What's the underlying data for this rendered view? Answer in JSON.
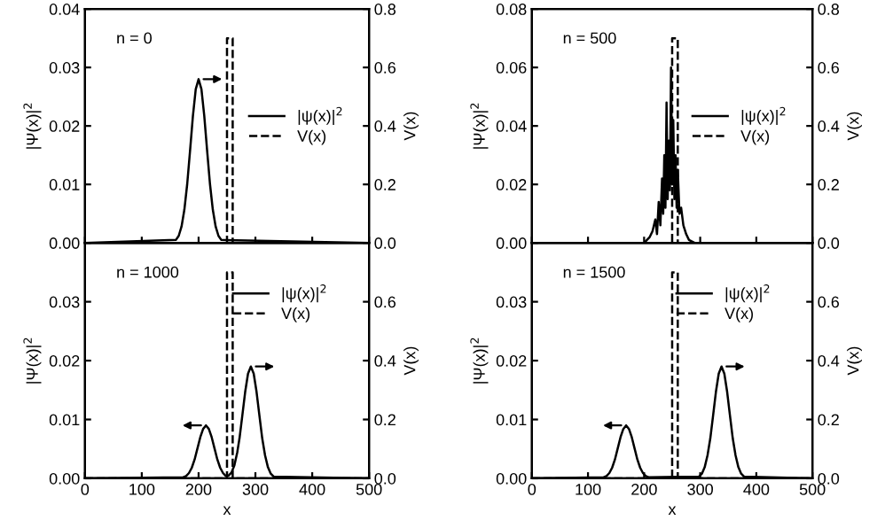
{
  "chart_data": [
    {
      "type": "line",
      "ylabel": "|Ψ(x)|$^{2}$",
      "y2label": "V(x)",
      "annotations": [
        "n = 0"
      ],
      "legend": "center right",
      "tick_labels": "y",
      "xlim": [
        0,
        500
      ],
      "xticks": [
        {
          "value": 0,
          "label": null
        },
        {
          "value": 100,
          "label": null
        },
        {
          "value": 200,
          "label": null
        },
        {
          "value": 300,
          "label": null
        },
        {
          "value": 400,
          "label": null
        },
        {
          "value": 500,
          "label": null
        }
      ],
      "ylim": [
        0,
        0.04
      ],
      "yticks": [
        {
          "value": 0,
          "label": "0.00"
        },
        {
          "value": 0.01,
          "label": "0.01"
        },
        {
          "value": 0.02,
          "label": "0.02"
        },
        {
          "value": 0.03,
          "label": "0.03"
        },
        {
          "value": 0.04,
          "label": "0.04"
        }
      ],
      "y2lim": [
        0,
        0.8
      ],
      "y2ticks": [
        {
          "value": 0,
          "label": "0.0"
        },
        {
          "value": 0.2,
          "label": "0.2"
        },
        {
          "value": 0.4,
          "label": "0.4"
        },
        {
          "value": 0.6,
          "label": "0.6"
        },
        {
          "value": 0.8,
          "label": "0.8"
        }
      ],
      "series": [
        {
          "name": "|ψ(x)|$^{2}$",
          "color": "#000000",
          "line_style": "solid",
          "x": [
            0,
            160,
            165,
            170,
            175,
            180,
            185,
            190,
            195,
            200,
            205,
            210,
            215,
            220,
            225,
            230,
            235,
            240,
            500
          ],
          "values": [
            0,
            0.0005,
            0.0012,
            0.0028,
            0.0057,
            0.0101,
            0.0158,
            0.0217,
            0.0263,
            0.028,
            0.0263,
            0.0217,
            0.0158,
            0.0101,
            0.0057,
            0.0028,
            0.0012,
            0.0005,
            0
          ]
        },
        {
          "name": "V(x)",
          "color": "#000000",
          "line_style": "dashed",
          "axis": "y2",
          "x": [
            0,
            250,
            250,
            260,
            260,
            500
          ],
          "values": [
            0,
            0,
            0.7,
            0.7,
            0,
            0
          ]
        }
      ]
    },
    {
      "type": "line",
      "ylabel": "|Ψ(x)|$^{2}$",
      "y2label": "V(x)",
      "annotations": [
        "n = 500"
      ],
      "legend": "center right",
      "tick_labels": "y",
      "xlim": [
        0,
        500
      ],
      "xticks": [
        {
          "value": 0,
          "label": null
        },
        {
          "value": 100,
          "label": null
        },
        {
          "value": 200,
          "label": null
        },
        {
          "value": 300,
          "label": null
        },
        {
          "value": 400,
          "label": null
        },
        {
          "value": 500,
          "label": null
        }
      ],
      "ylim": [
        0,
        0.08
      ],
      "yticks": [
        {
          "value": 0,
          "label": "0.00"
        },
        {
          "value": 0.02,
          "label": "0.02"
        },
        {
          "value": 0.04,
          "label": "0.04"
        },
        {
          "value": 0.06,
          "label": "0.06"
        },
        {
          "value": 0.08,
          "label": "0.08"
        }
      ],
      "y2lim": [
        0,
        0.8
      ],
      "y2ticks": [
        {
          "value": 0,
          "label": "0.0"
        },
        {
          "value": 0.2,
          "label": "0.2"
        },
        {
          "value": 0.4,
          "label": "0.4"
        },
        {
          "value": 0.6,
          "label": "0.6"
        },
        {
          "value": 0.8,
          "label": "0.8"
        }
      ],
      "series": [
        {
          "name": "|ψ(x)|$^{2}$",
          "color": "#000000",
          "line_style": "solid",
          "x": [
            0,
            200,
            210,
            215,
            220,
            223,
            226,
            229,
            232,
            234,
            236,
            238,
            240,
            242,
            244,
            246,
            248,
            250,
            252,
            254,
            256,
            258,
            260,
            263,
            266,
            270,
            275,
            280,
            290,
            500
          ],
          "values": [
            0,
            0,
            0.002,
            0.004,
            0.008,
            0.003,
            0.014,
            0.006,
            0.022,
            0.01,
            0.03,
            0.012,
            0.048,
            0.015,
            0.035,
            0.018,
            0.06,
            0.02,
            0.042,
            0.015,
            0.03,
            0.012,
            0.025,
            0.01,
            0.012,
            0.006,
            0.003,
            0.001,
            0,
            0
          ]
        },
        {
          "name": "V(x)",
          "color": "#000000",
          "line_style": "dashed",
          "axis": "y2",
          "x": [
            0,
            250,
            250,
            260,
            260,
            500
          ],
          "values": [
            0,
            0,
            0.7,
            0.7,
            0,
            0
          ]
        }
      ]
    },
    {
      "type": "line",
      "xlabel": "x",
      "ylabel": "|Ψ(x)|$^{2}$",
      "y2label": "V(x)",
      "annotations": [
        "n = 1000"
      ],
      "legend": "upper right",
      "xlim": [
        0,
        500
      ],
      "xticks": [
        0,
        100,
        200,
        300,
        400,
        500
      ],
      "ylim": [
        0,
        0.04
      ],
      "yticks": [
        {
          "value": 0,
          "label": "0.00"
        },
        {
          "value": 0.01,
          "label": "0.01"
        },
        {
          "value": 0.02,
          "label": "0.02"
        },
        {
          "value": 0.03,
          "label": "0.03"
        }
      ],
      "y2lim": [
        0,
        0.8
      ],
      "y2ticks": [
        {
          "value": 0,
          "label": "0.0"
        },
        {
          "value": 0.2,
          "label": "0.2"
        },
        {
          "value": 0.4,
          "label": "0.4"
        },
        {
          "value": 0.6,
          "label": "0.6"
        }
      ],
      "series": [
        {
          "name": "|ψ(x)|$^{2}$",
          "color": "#000000",
          "line_style": "solid",
          "x": [
            0,
            173,
            178,
            183,
            188,
            193,
            198,
            203,
            208,
            213,
            218,
            223,
            228,
            233,
            238,
            243,
            248,
            253,
            258,
            263,
            268,
            272,
            277,
            282,
            287,
            292,
            297,
            302,
            307,
            312,
            317,
            322,
            327,
            332,
            500
          ],
          "values": [
            0,
            0.0002,
            0.0004,
            0.0009,
            0.0018,
            0.0032,
            0.0051,
            0.007,
            0.0084,
            0.009,
            0.0084,
            0.007,
            0.0051,
            0.0032,
            0.0018,
            0.0009,
            0.0004,
            0.0005,
            0.001,
            0.0022,
            0.0044,
            0.0068,
            0.0107,
            0.0147,
            0.0178,
            0.019,
            0.0178,
            0.0147,
            0.0107,
            0.0068,
            0.0039,
            0.0019,
            0.0008,
            0.0003,
            0
          ]
        },
        {
          "name": "V(x)",
          "color": "#000000",
          "line_style": "dashed",
          "axis": "y2",
          "x": [
            0,
            250,
            250,
            260,
            260,
            500
          ],
          "values": [
            0,
            0,
            0.7,
            0.7,
            0,
            0
          ]
        }
      ]
    },
    {
      "type": "line",
      "xlabel": "x",
      "ylabel": "|Ψ(x)|$^{2}$",
      "y2label": "V(x)",
      "annotations": [
        "n = 1500"
      ],
      "legend": "upper right",
      "xlim": [
        0,
        500
      ],
      "xticks": [
        0,
        100,
        200,
        300,
        400,
        500
      ],
      "ylim": [
        0,
        0.04
      ],
      "yticks": [
        {
          "value": 0,
          "label": "0.00"
        },
        {
          "value": 0.01,
          "label": "0.01"
        },
        {
          "value": 0.02,
          "label": "0.02"
        },
        {
          "value": 0.03,
          "label": "0.03"
        }
      ],
      "y2lim": [
        0,
        0.8
      ],
      "y2ticks": [
        {
          "value": 0,
          "label": "0.0"
        },
        {
          "value": 0.2,
          "label": "0.2"
        },
        {
          "value": 0.4,
          "label": "0.4"
        },
        {
          "value": 0.6,
          "label": "0.6"
        }
      ],
      "series": [
        {
          "name": "|ψ(x)|$^{2}$",
          "color": "#000000",
          "line_style": "solid",
          "x": [
            0,
            128,
            133,
            138,
            143,
            148,
            153,
            158,
            163,
            168,
            173,
            178,
            183,
            188,
            193,
            198,
            203,
            208,
            298,
            303,
            308,
            313,
            318,
            323,
            328,
            333,
            338,
            343,
            348,
            353,
            358,
            363,
            368,
            373,
            378,
            500
          ],
          "values": [
            0,
            0.0002,
            0.0004,
            0.0009,
            0.0018,
            0.0032,
            0.0051,
            0.007,
            0.0084,
            0.009,
            0.0084,
            0.007,
            0.0051,
            0.0032,
            0.0018,
            0.0009,
            0.0004,
            0.0002,
            0.0003,
            0.0008,
            0.0019,
            0.0039,
            0.0068,
            0.0107,
            0.0147,
            0.0178,
            0.019,
            0.0178,
            0.0147,
            0.0107,
            0.0068,
            0.0039,
            0.0019,
            0.0008,
            0.0003,
            0
          ]
        },
        {
          "name": "V(x)",
          "color": "#000000",
          "line_style": "dashed",
          "axis": "y2",
          "x": [
            0,
            250,
            250,
            260,
            260,
            500
          ],
          "values": [
            0,
            0,
            0.7,
            0.7,
            0,
            0
          ]
        }
      ]
    }
  ]
}
